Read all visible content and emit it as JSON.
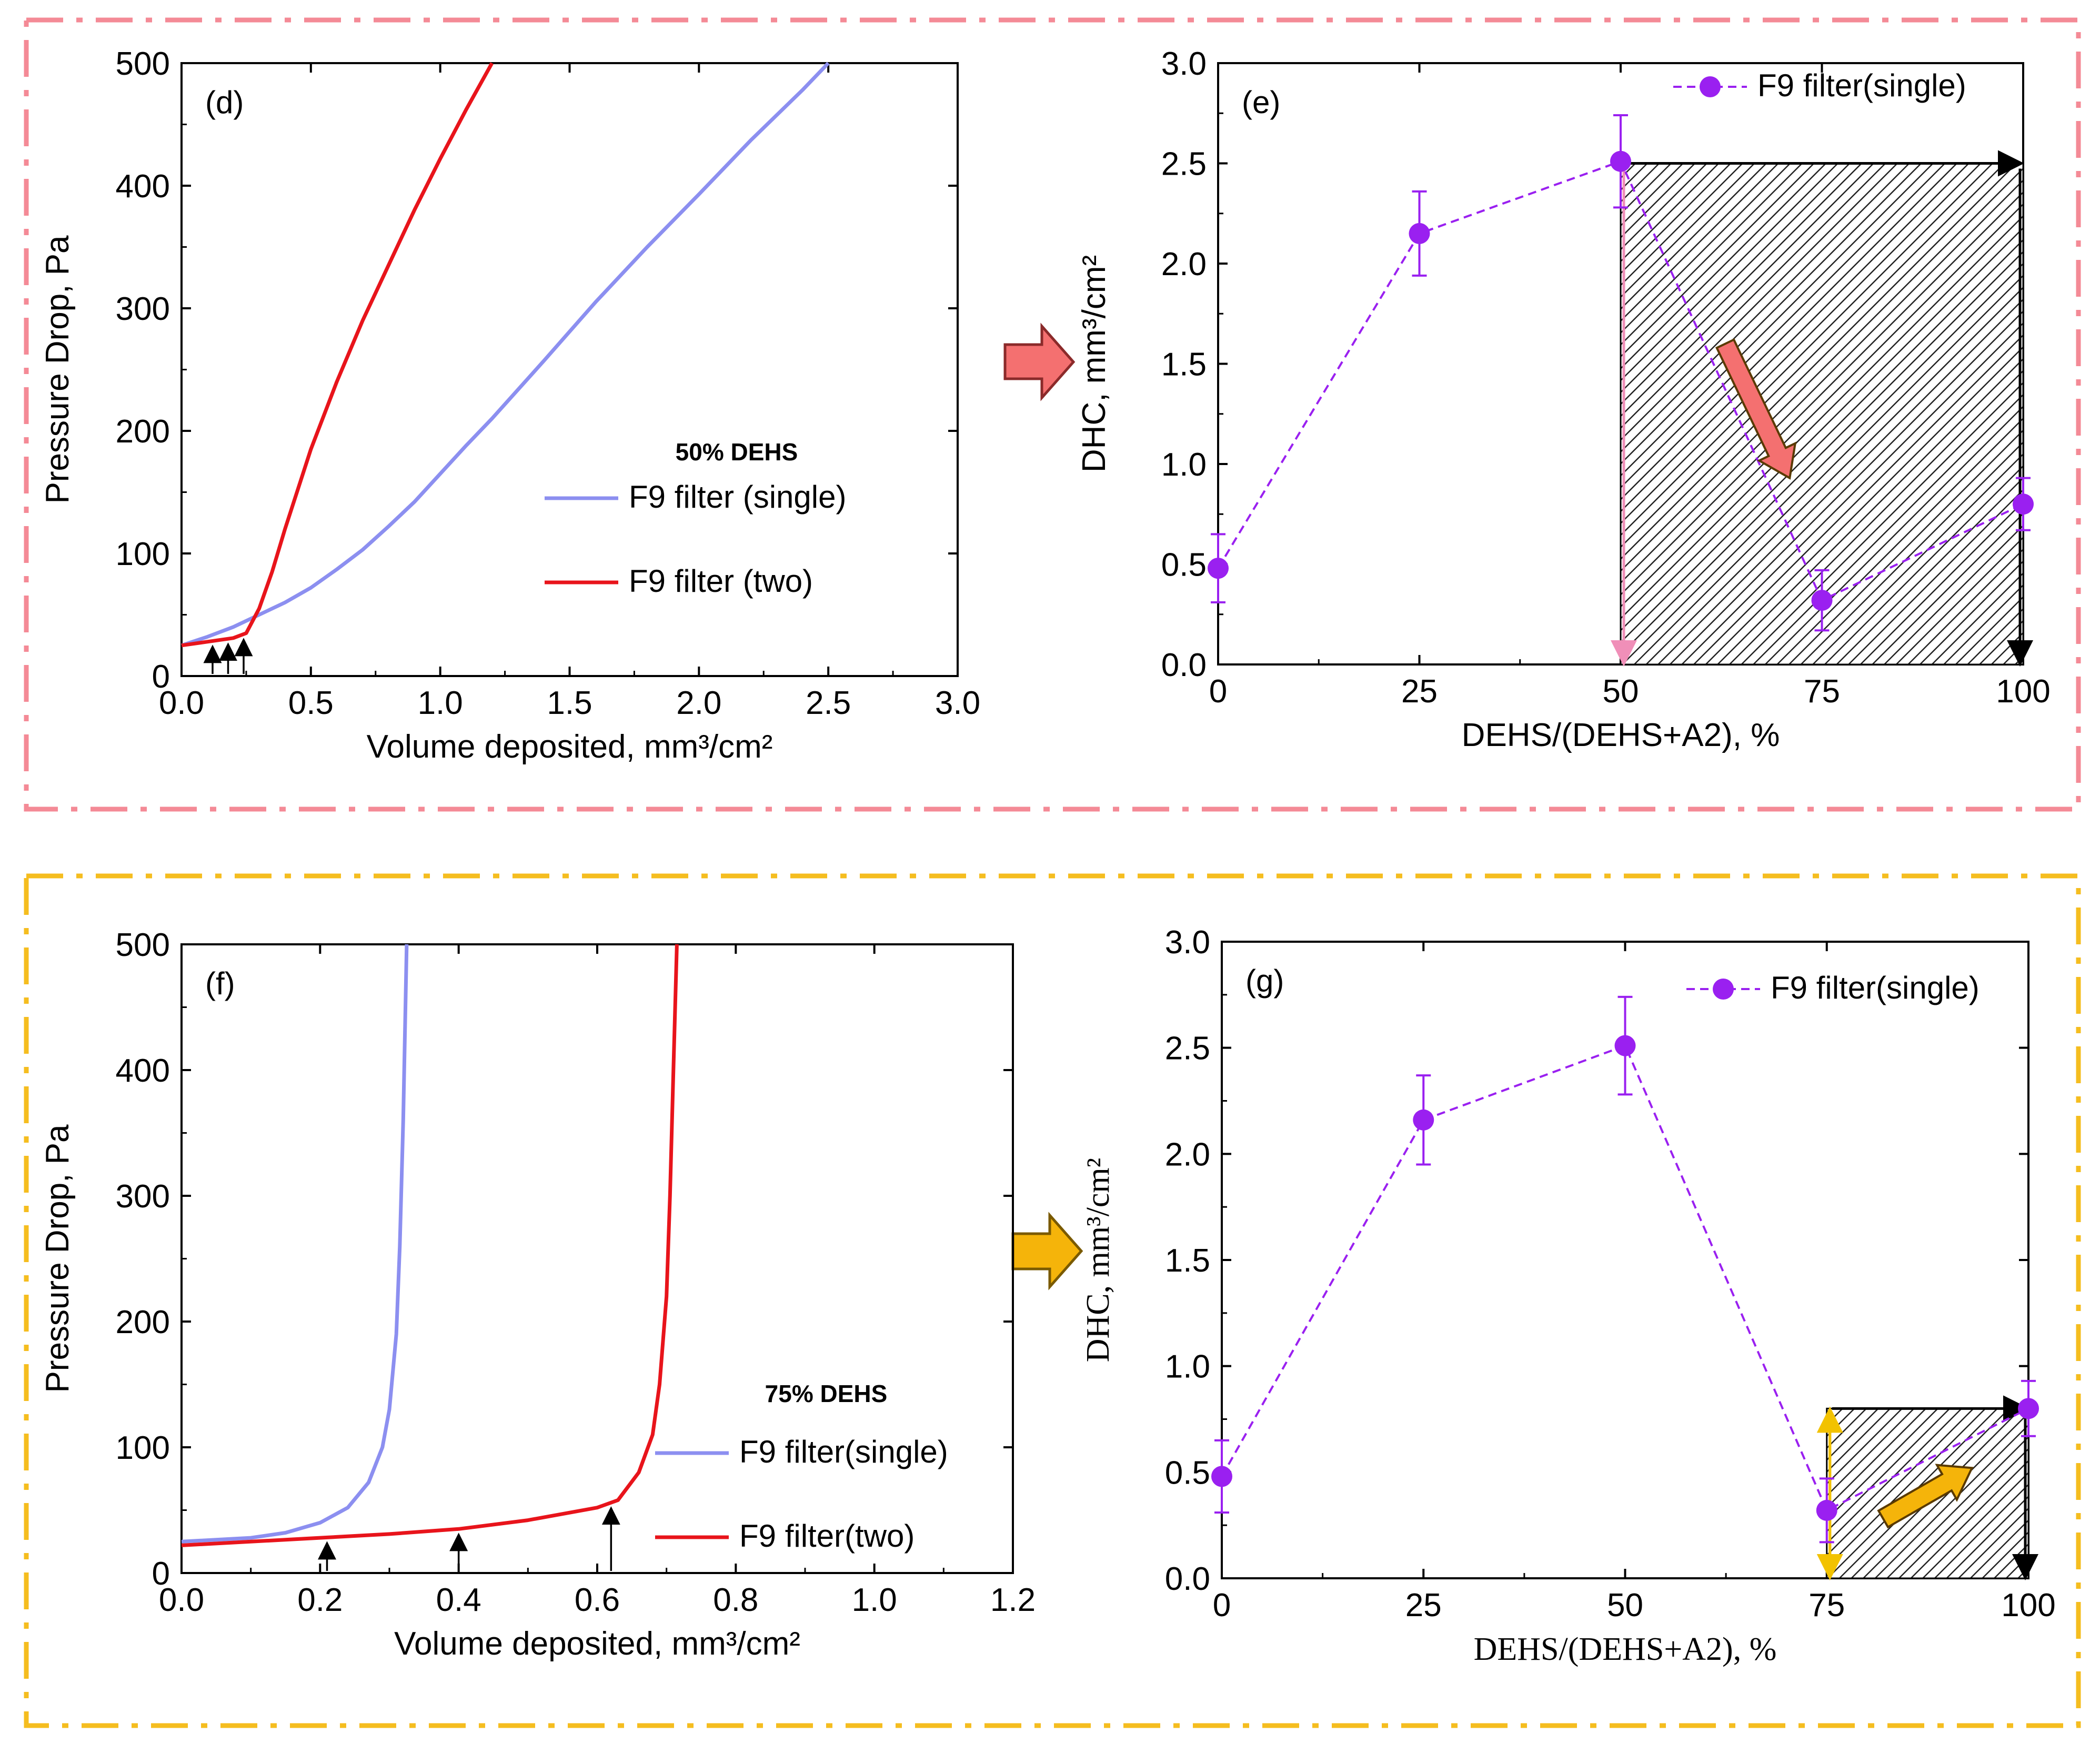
{
  "colors": {
    "frame_top": "#f48a96",
    "frame_bottom": "#f5bd1f",
    "single_line": "#8c8ff0",
    "two_line": "#e8141b",
    "dhc_series": "#9a20f0",
    "arrow_pink": "#f47070",
    "arrow_orange": "#f5b40a"
  },
  "chart_data": [
    {
      "id": "d",
      "type": "line",
      "panel_label": "(d)",
      "annotation": "50% DEHS",
      "xlabel": "Volume deposited, mm³/cm²",
      "ylabel": "Pressure Drop, Pa",
      "xlim": [
        0,
        3.0
      ],
      "ylim": [
        0,
        500
      ],
      "xticks": [
        "0.0",
        "0.5",
        "1.0",
        "1.5",
        "2.0",
        "2.5",
        "3.0"
      ],
      "yticks": [
        "0",
        "100",
        "200",
        "300",
        "400",
        "500"
      ],
      "loading_arrows_x": [
        0.12,
        0.18,
        0.24
      ],
      "series": [
        {
          "name": "F9 filter (single)",
          "color_key": "single_line",
          "x": [
            0,
            0.1,
            0.2,
            0.3,
            0.4,
            0.5,
            0.6,
            0.7,
            0.8,
            0.9,
            1.0,
            1.1,
            1.2,
            1.4,
            1.6,
            1.8,
            2.0,
            2.2,
            2.4,
            2.5
          ],
          "y": [
            25,
            32,
            40,
            50,
            60,
            72,
            87,
            103,
            122,
            142,
            165,
            188,
            210,
            257,
            305,
            350,
            393,
            437,
            478,
            500
          ]
        },
        {
          "name": "F9 filter (two)",
          "color_key": "two_line",
          "x": [
            0,
            0.1,
            0.2,
            0.25,
            0.3,
            0.35,
            0.4,
            0.5,
            0.6,
            0.7,
            0.8,
            0.9,
            1.0,
            1.1,
            1.2
          ],
          "y": [
            25,
            28,
            31,
            35,
            55,
            85,
            120,
            185,
            240,
            290,
            335,
            380,
            422,
            462,
            500
          ]
        }
      ]
    },
    {
      "id": "e",
      "type": "scatter",
      "panel_label": "(e)",
      "xlabel": "DEHS/(DEHS+A2), %",
      "ylabel": "DHC, mm³/cm²",
      "xlim": [
        0,
        100
      ],
      "ylim": [
        0,
        3.0
      ],
      "xticks": [
        "0",
        "25",
        "50",
        "75",
        "100"
      ],
      "yticks": [
        "0.0",
        "0.5",
        "1.0",
        "1.5",
        "2.0",
        "2.5",
        "3.0"
      ],
      "series": [
        {
          "name": "F9 filter(single)",
          "color_key": "dhc_series",
          "x": [
            0,
            25,
            50,
            75,
            100
          ],
          "y": [
            0.48,
            2.15,
            2.51,
            0.32,
            0.8
          ],
          "err": [
            0.17,
            0.21,
            0.23,
            0.15,
            0.13
          ]
        }
      ],
      "shaded_region": {
        "x": [
          50,
          100
        ],
        "y": [
          0,
          2.5
        ]
      },
      "trend_arrow": {
        "from": [
          63,
          1.6
        ],
        "to": [
          71,
          0.93
        ]
      }
    },
    {
      "id": "f",
      "type": "line",
      "panel_label": "(f)",
      "annotation": "75% DEHS",
      "xlabel": "Volume deposited, mm³/cm²",
      "ylabel": "Pressure Drop, Pa",
      "xlim": [
        0,
        1.2
      ],
      "ylim": [
        0,
        500
      ],
      "xticks": [
        "0.0",
        "0.2",
        "0.4",
        "0.6",
        "0.8",
        "1.0",
        "1.2"
      ],
      "yticks": [
        "0",
        "100",
        "200",
        "300",
        "400",
        "500"
      ],
      "loading_arrows_x": [
        0.21,
        0.4,
        0.62
      ],
      "series": [
        {
          "name": "F9 filter(single)",
          "color_key": "single_line",
          "x": [
            0,
            0.1,
            0.15,
            0.2,
            0.24,
            0.27,
            0.29,
            0.3,
            0.31,
            0.315,
            0.32,
            0.325
          ],
          "y": [
            25,
            28,
            32,
            40,
            52,
            72,
            100,
            130,
            190,
            260,
            360,
            500
          ]
        },
        {
          "name": "F9 filter(two)",
          "color_key": "two_line",
          "x": [
            0,
            0.1,
            0.2,
            0.3,
            0.4,
            0.5,
            0.6,
            0.63,
            0.66,
            0.68,
            0.69,
            0.7,
            0.705,
            0.71,
            0.715
          ],
          "y": [
            22,
            25,
            28,
            31,
            35,
            42,
            52,
            58,
            80,
            110,
            150,
            220,
            300,
            400,
            500
          ]
        }
      ]
    },
    {
      "id": "g",
      "type": "scatter",
      "panel_label": "(g)",
      "xlabel": "DEHS/(DEHS+A2), %",
      "ylabel": "DHC, mm³/cm²",
      "xlim": [
        0,
        100
      ],
      "ylim": [
        0,
        3.0
      ],
      "xticks": [
        "0",
        "25",
        "50",
        "75",
        "100"
      ],
      "yticks": [
        "0.0",
        "0.5",
        "1.0",
        "1.5",
        "2.0",
        "2.5",
        "3.0"
      ],
      "series": [
        {
          "name": "F9 filter(single)",
          "color_key": "dhc_series",
          "x": [
            0,
            25,
            50,
            75,
            100
          ],
          "y": [
            0.48,
            2.16,
            2.51,
            0.32,
            0.8
          ],
          "err": [
            0.17,
            0.21,
            0.23,
            0.15,
            0.13
          ]
        }
      ],
      "shaded_region": {
        "x": [
          75,
          100
        ],
        "y": [
          0,
          0.8
        ]
      },
      "trend_arrow": {
        "from": [
          82,
          0.28
        ],
        "to": [
          93,
          0.52
        ]
      }
    }
  ]
}
